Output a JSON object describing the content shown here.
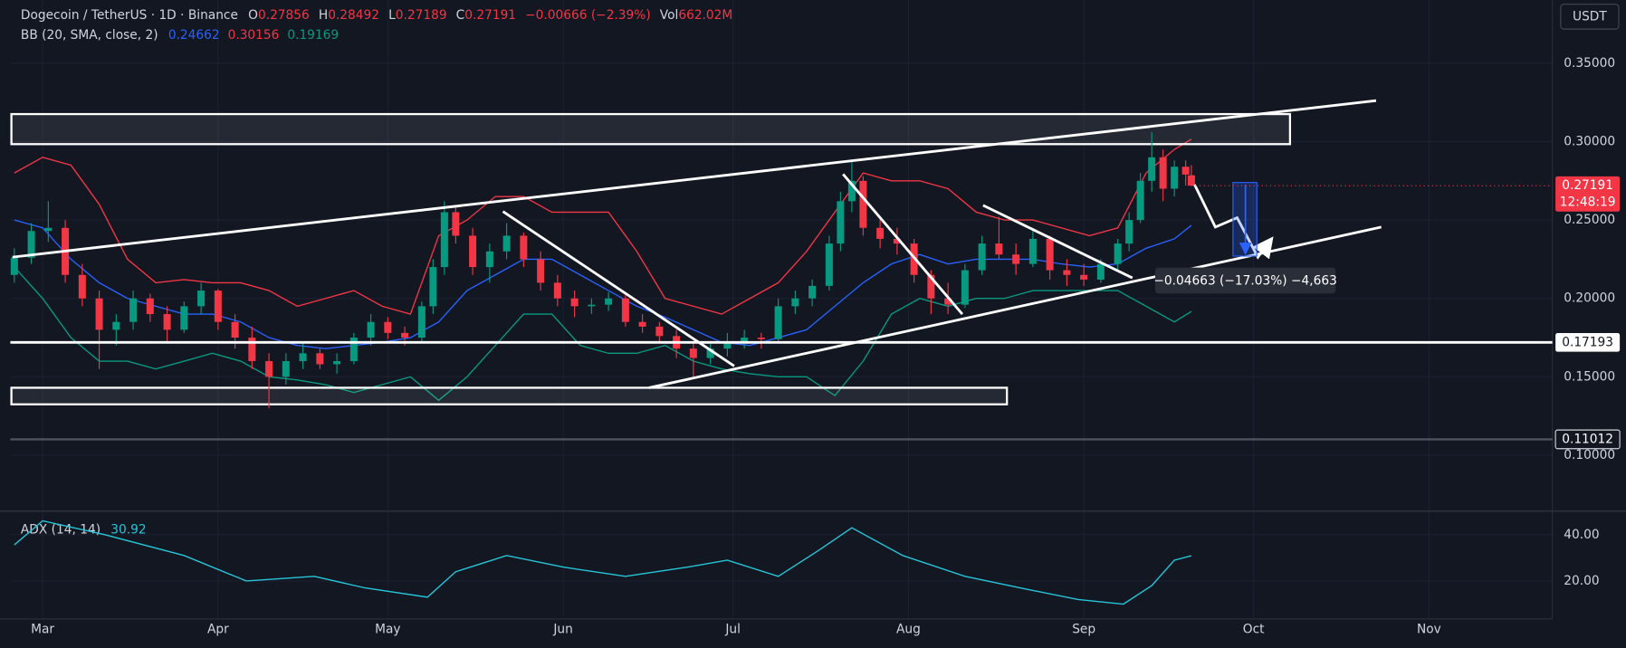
{
  "chart_data": {
    "type": "candlestick",
    "title": "Dogecoin / TetherUS · 1D · Binance",
    "legend": {
      "o_label": "O",
      "h_label": "H",
      "l_label": "L",
      "c_label": "C",
      "change": "−0.00666 (−2.39%)",
      "vol_label": "Vol",
      "volume": "662.02M"
    },
    "x": [
      -5,
      -2,
      1,
      4,
      7,
      10,
      13,
      16,
      19,
      22,
      25,
      28,
      31,
      34,
      37,
      40,
      43,
      46,
      49,
      52,
      55,
      58,
      61,
      64,
      67,
      69,
      71,
      73,
      76,
      79,
      82,
      85,
      88,
      91,
      94,
      97,
      100,
      103,
      106,
      109,
      112,
      115,
      118,
      121,
      124,
      127,
      130,
      133,
      136,
      139,
      141,
      143,
      145,
      148,
      151,
      154,
      157,
      160,
      163,
      166,
      169,
      172,
      175,
      178,
      181,
      184,
      187,
      190,
      192,
      194,
      196,
      198,
      200,
      202,
      203
    ],
    "open": [
      0.215,
      0.226,
      0.243,
      0.245,
      0.215,
      0.2,
      0.18,
      0.185,
      0.2,
      0.19,
      0.18,
      0.195,
      0.205,
      0.185,
      0.175,
      0.16,
      0.15,
      0.16,
      0.165,
      0.158,
      0.16,
      0.175,
      0.185,
      0.178,
      0.175,
      0.195,
      0.22,
      0.255,
      0.24,
      0.22,
      0.23,
      0.24,
      0.225,
      0.21,
      0.2,
      0.195,
      0.196,
      0.2,
      0.185,
      0.182,
      0.176,
      0.168,
      0.162,
      0.168,
      0.172,
      0.175,
      0.174,
      0.195,
      0.2,
      0.208,
      0.235,
      0.262,
      0.275,
      0.245,
      0.238,
      0.235,
      0.215,
      0.2,
      0.196,
      0.218,
      0.235,
      0.228,
      0.222,
      0.238,
      0.218,
      0.215,
      0.212,
      0.222,
      0.235,
      0.25,
      0.275,
      0.29,
      0.27,
      0.284,
      0.27856
    ],
    "high": [
      0.232,
      0.248,
      0.262,
      0.25,
      0.222,
      0.205,
      0.19,
      0.205,
      0.203,
      0.195,
      0.198,
      0.21,
      0.206,
      0.19,
      0.182,
      0.165,
      0.165,
      0.172,
      0.168,
      0.165,
      0.178,
      0.19,
      0.188,
      0.182,
      0.198,
      0.225,
      0.262,
      0.258,
      0.245,
      0.235,
      0.248,
      0.242,
      0.23,
      0.215,
      0.205,
      0.2,
      0.204,
      0.202,
      0.19,
      0.185,
      0.18,
      0.172,
      0.172,
      0.178,
      0.18,
      0.178,
      0.2,
      0.205,
      0.212,
      0.24,
      0.268,
      0.288,
      0.278,
      0.25,
      0.245,
      0.238,
      0.218,
      0.21,
      0.222,
      0.24,
      0.252,
      0.235,
      0.245,
      0.24,
      0.225,
      0.222,
      0.225,
      0.238,
      0.255,
      0.28,
      0.306,
      0.295,
      0.288,
      0.288,
      0.28492
    ],
    "low": [
      0.21,
      0.222,
      0.236,
      0.21,
      0.195,
      0.155,
      0.17,
      0.18,
      0.185,
      0.172,
      0.178,
      0.19,
      0.18,
      0.168,
      0.155,
      0.13,
      0.145,
      0.155,
      0.155,
      0.152,
      0.158,
      0.17,
      0.174,
      0.17,
      0.172,
      0.19,
      0.215,
      0.235,
      0.215,
      0.21,
      0.225,
      0.22,
      0.205,
      0.195,
      0.188,
      0.19,
      0.192,
      0.182,
      0.178,
      0.172,
      0.162,
      0.15,
      0.158,
      0.163,
      0.168,
      0.168,
      0.172,
      0.19,
      0.195,
      0.205,
      0.23,
      0.255,
      0.24,
      0.232,
      0.228,
      0.21,
      0.19,
      0.19,
      0.194,
      0.215,
      0.225,
      0.215,
      0.22,
      0.212,
      0.208,
      0.208,
      0.21,
      0.218,
      0.23,
      0.248,
      0.268,
      0.262,
      0.265,
      0.272,
      0.27189
    ],
    "close": [
      0.226,
      0.243,
      0.245,
      0.215,
      0.2,
      0.18,
      0.185,
      0.2,
      0.19,
      0.18,
      0.195,
      0.205,
      0.185,
      0.175,
      0.16,
      0.15,
      0.16,
      0.165,
      0.158,
      0.16,
      0.175,
      0.185,
      0.178,
      0.175,
      0.195,
      0.22,
      0.255,
      0.24,
      0.22,
      0.23,
      0.24,
      0.225,
      0.21,
      0.2,
      0.195,
      0.196,
      0.2,
      0.185,
      0.182,
      0.176,
      0.168,
      0.162,
      0.168,
      0.172,
      0.175,
      0.174,
      0.195,
      0.2,
      0.208,
      0.235,
      0.262,
      0.275,
      0.245,
      0.238,
      0.235,
      0.215,
      0.2,
      0.196,
      0.218,
      0.235,
      0.228,
      0.222,
      0.238,
      0.218,
      0.215,
      0.212,
      0.222,
      0.235,
      0.25,
      0.275,
      0.29,
      0.27,
      0.284,
      0.279,
      0.27191
    ],
    "up_color": "#089981",
    "down_color": "#f23645",
    "xlim": [
      -5.7,
      266.8
    ],
    "xticks": [
      {
        "value": 0,
        "label": "Mar"
      },
      {
        "value": 31,
        "label": "Apr"
      },
      {
        "value": 61,
        "label": "May"
      },
      {
        "value": 92,
        "label": "Jun"
      },
      {
        "value": 122,
        "label": "Jul"
      },
      {
        "value": 153,
        "label": "Aug"
      },
      {
        "value": 184,
        "label": "Sep"
      },
      {
        "value": 214,
        "label": "Oct"
      },
      {
        "value": 245,
        "label": "Nov"
      }
    ],
    "ylim": [
      0.065,
      0.3903
    ],
    "yticks": [
      {
        "value": 0.35,
        "label": "0.35000"
      },
      {
        "value": 0.3,
        "label": "0.30000"
      },
      {
        "value": 0.25,
        "label": "0.25000"
      },
      {
        "value": 0.2,
        "label": "0.20000"
      },
      {
        "value": 0.15,
        "label": "0.15000"
      },
      {
        "value": 0.1,
        "label": "0.10000"
      }
    ],
    "grid": true,
    "y_unit": "USDT",
    "countdown": "12:48:19",
    "price_lines": [
      {
        "value": 0.17193,
        "color": "#ffffff"
      },
      {
        "value": 0.11012,
        "color": "#787b86"
      }
    ],
    "measure_label": "−0.04663 (−17.03%) −4,663",
    "bollinger": {
      "label": "BB (20, SMA, close, 2)",
      "x": [
        -5,
        0,
        5,
        10,
        15,
        20,
        25,
        30,
        35,
        40,
        45,
        50,
        55,
        60,
        65,
        70,
        75,
        80,
        85,
        90,
        95,
        100,
        105,
        110,
        115,
        120,
        125,
        130,
        135,
        140,
        145,
        150,
        155,
        160,
        165,
        170,
        175,
        180,
        185,
        190,
        195,
        200,
        203
      ],
      "basis": {
        "color": "#2962ff",
        "values": [
          0.25,
          0.245,
          0.225,
          0.21,
          0.2,
          0.195,
          0.19,
          0.19,
          0.185,
          0.175,
          0.17,
          0.168,
          0.17,
          0.172,
          0.175,
          0.185,
          0.205,
          0.215,
          0.225,
          0.225,
          0.215,
          0.205,
          0.195,
          0.188,
          0.18,
          0.172,
          0.17,
          0.175,
          0.18,
          0.195,
          0.21,
          0.222,
          0.228,
          0.222,
          0.225,
          0.225,
          0.225,
          0.222,
          0.22,
          0.222,
          0.232,
          0.238,
          0.24662
        ]
      },
      "upper": {
        "color": "#f23645",
        "values": [
          0.28,
          0.29,
          0.285,
          0.26,
          0.225,
          0.21,
          0.212,
          0.21,
          0.21,
          0.205,
          0.195,
          0.2,
          0.205,
          0.195,
          0.19,
          0.24,
          0.25,
          0.265,
          0.265,
          0.255,
          0.255,
          0.255,
          0.23,
          0.2,
          0.195,
          0.19,
          0.2,
          0.21,
          0.23,
          0.255,
          0.28,
          0.275,
          0.275,
          0.27,
          0.255,
          0.25,
          0.25,
          0.245,
          0.24,
          0.245,
          0.28,
          0.295,
          0.30156
        ]
      },
      "lower": {
        "color": "#089981",
        "values": [
          0.22,
          0.2,
          0.175,
          0.16,
          0.16,
          0.155,
          0.16,
          0.165,
          0.16,
          0.15,
          0.148,
          0.145,
          0.14,
          0.145,
          0.15,
          0.135,
          0.15,
          0.17,
          0.19,
          0.19,
          0.17,
          0.165,
          0.165,
          0.17,
          0.16,
          0.155,
          0.152,
          0.15,
          0.15,
          0.138,
          0.16,
          0.19,
          0.2,
          0.195,
          0.2,
          0.2,
          0.205,
          0.205,
          0.205,
          0.205,
          0.195,
          0.185,
          0.19169
        ]
      }
    },
    "adx": {
      "type": "line",
      "label": "ADX (14, 14)",
      "color": "#26c6da",
      "x": [
        -5,
        0,
        11,
        25,
        36,
        48,
        57,
        68,
        73,
        82,
        92,
        103,
        114,
        121,
        130,
        137,
        143,
        152,
        163,
        174,
        183,
        191,
        196,
        200,
        203
      ],
      "values": [
        35.6,
        46,
        40,
        31,
        20,
        22,
        17,
        13,
        24,
        31,
        26,
        22,
        26,
        29,
        22,
        33,
        43,
        31,
        22,
        16.4,
        12,
        10,
        18,
        29,
        30.92
      ],
      "ylim": [
        3.6,
        50.2
      ],
      "yticks": [
        {
          "value": 40,
          "label": "40.00"
        },
        {
          "value": 20,
          "label": "20.00"
        }
      ]
    }
  }
}
